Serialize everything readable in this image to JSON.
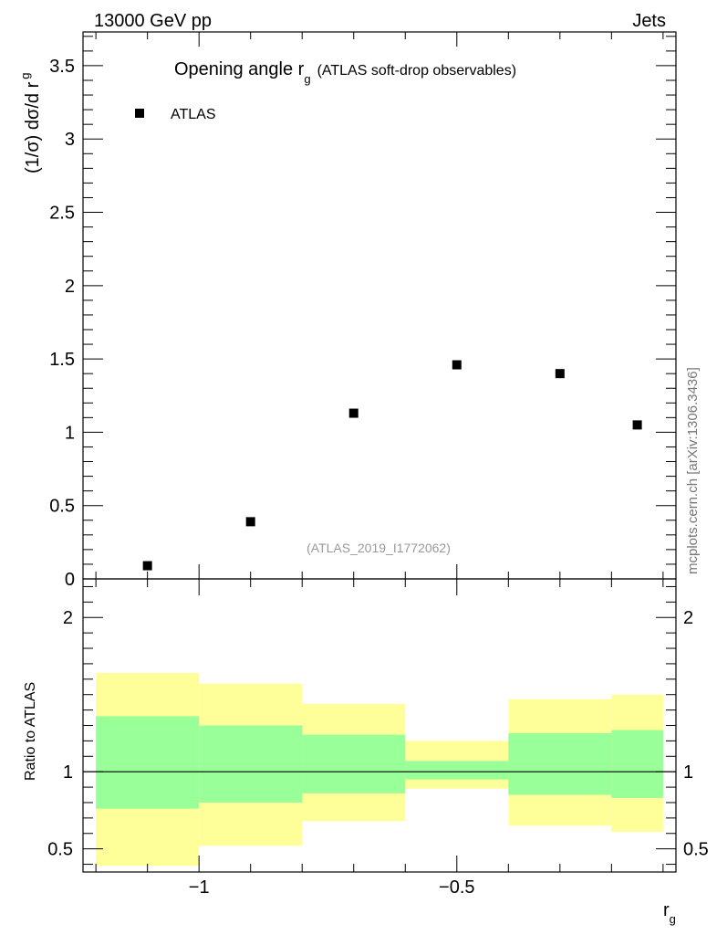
{
  "header": {
    "energy": "13000 GeV pp",
    "category": "Jets"
  },
  "title": {
    "main": "Opening angle r",
    "main_sub": "g",
    "detail": "(ATLAS soft-drop observables)"
  },
  "legend": {
    "label": "ATLAS",
    "position": "top-left"
  },
  "analysis_id": "(ATLAS_2019_I1772062)",
  "watermark": "mcplots.cern.ch [arXiv:1306.3436]",
  "colors": {
    "data": "#000000",
    "band_outer": "#ffff99",
    "band_inner": "#99ff99",
    "ratio_line": "#000000"
  },
  "chart_data": [
    {
      "type": "scatter",
      "name": "main",
      "ylabel": "(1/σ) dσ/d r",
      "ylabel_sub": "g",
      "xlim": [
        -1.225,
        -0.075
      ],
      "ylim": [
        0,
        3.73
      ],
      "yticks": [
        0.5,
        1,
        1.5,
        2,
        2.5,
        3,
        3.5
      ],
      "ytick_labels": [
        "0.5",
        "1",
        "1.5",
        "2",
        "2.5",
        "3",
        "3.5"
      ],
      "ytick_zero_label": "0",
      "series": [
        {
          "name": "ATLAS",
          "x": [
            -1.1,
            -0.9,
            -0.7,
            -0.5,
            -0.3,
            -0.15
          ],
          "y": [
            0.09,
            0.39,
            1.13,
            1.46,
            1.4,
            1.05
          ]
        }
      ]
    },
    {
      "type": "area",
      "name": "ratio",
      "ylabel": "Ratio to ATLAS",
      "xlabel": "r",
      "xlabel_sub": "g",
      "xlim": [
        -1.225,
        -0.075
      ],
      "ylim": [
        0.35,
        2.25
      ],
      "yticks": [
        0.5,
        1,
        2
      ],
      "ytick_labels": [
        "0.5",
        "1",
        "2"
      ],
      "xticks": [
        -1,
        -0.5
      ],
      "xtick_labels": [
        "−1",
        "−0.5"
      ],
      "reference_line": 1,
      "bins": [
        {
          "low": -1.2,
          "high": -1.0,
          "outer": [
            0.39,
            1.64
          ],
          "inner": [
            0.76,
            1.36
          ]
        },
        {
          "low": -1.0,
          "high": -0.8,
          "outer": [
            0.52,
            1.57
          ],
          "inner": [
            0.8,
            1.3
          ]
        },
        {
          "low": -0.8,
          "high": -0.6,
          "outer": [
            0.68,
            1.44
          ],
          "inner": [
            0.86,
            1.24
          ]
        },
        {
          "low": -0.6,
          "high": -0.4,
          "outer": [
            0.89,
            1.2
          ],
          "inner": [
            0.95,
            1.07
          ]
        },
        {
          "low": -0.4,
          "high": -0.2,
          "outer": [
            0.65,
            1.47
          ],
          "inner": [
            0.85,
            1.25
          ]
        },
        {
          "low": -0.2,
          "high": -0.1,
          "outer": [
            0.61,
            1.5
          ],
          "inner": [
            0.83,
            1.27
          ]
        }
      ]
    }
  ]
}
